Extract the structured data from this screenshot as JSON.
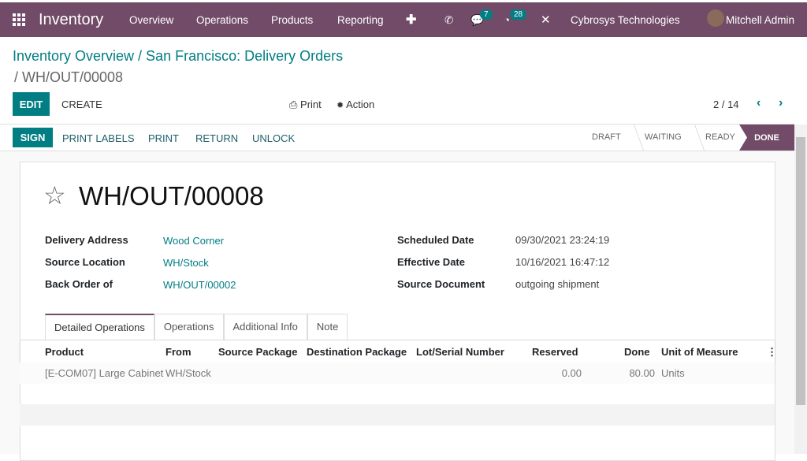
{
  "navbar": {
    "app": "Inventory",
    "menu": [
      "Overview",
      "Operations",
      "Products",
      "Reporting"
    ],
    "messages_count": "7",
    "activities_count": "28",
    "company": "Cybrosys Technologies",
    "user": "Mitchell Admin",
    "color": "#714B67"
  },
  "breadcrumb": {
    "path": "Inventory Overview / San Francisco: Delivery Orders",
    "current": "/ WH/OUT/00008"
  },
  "toolbar": {
    "edit": "EDIT",
    "create": "CREATE",
    "print": "Print",
    "action": "Action",
    "pager": "2 / 14"
  },
  "statusbar": {
    "buttons": [
      "SIGN",
      "PRINT LABELS",
      "PRINT",
      "RETURN",
      "UNLOCK"
    ],
    "stages": [
      "DRAFT",
      "WAITING",
      "READY",
      "DONE"
    ],
    "current": "DONE"
  },
  "record": {
    "name": "WH/OUT/00008",
    "left": [
      {
        "label": "Delivery Address",
        "value": "Wood Corner"
      },
      {
        "label": "Source Location",
        "value": "WH/Stock"
      },
      {
        "label": "Back Order of",
        "value": "WH/OUT/00002"
      }
    ],
    "right": [
      {
        "label": "Scheduled Date",
        "value": "09/30/2021 23:24:19"
      },
      {
        "label": "Effective Date",
        "value": "10/16/2021 16:47:12"
      },
      {
        "label": "Source Document",
        "value": "outgoing shipment"
      }
    ]
  },
  "tabs": [
    "Detailed Operations",
    "Operations",
    "Additional Info",
    "Note"
  ],
  "table": {
    "headers": [
      "Product",
      "From",
      "Source Package",
      "Destination Package",
      "Lot/Serial Number",
      "Reserved",
      "Done",
      "Unit of Measure"
    ],
    "rows": [
      {
        "product": "[E-COM07] Large Cabinet",
        "from": "WH/Stock",
        "reserved": "0.00",
        "done": "80.00",
        "uom": "Units"
      }
    ]
  },
  "accent": "#017e84"
}
